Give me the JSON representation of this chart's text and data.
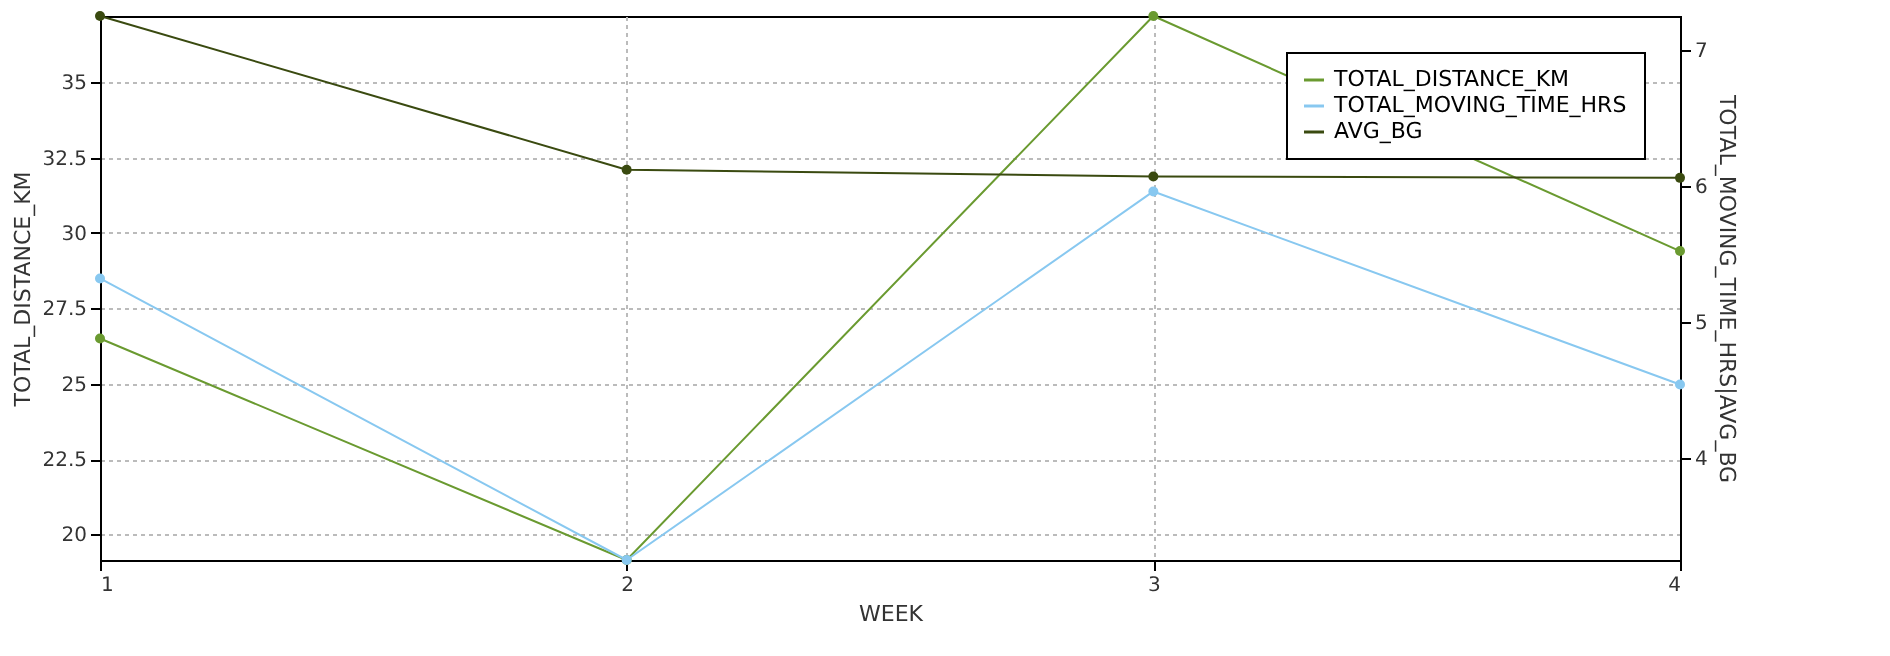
{
  "chart_data": {
    "type": "line",
    "xlabel": "WEEK",
    "ylabel": "TOTAL_DISTANCE_KM",
    "y2label": "TOTAL_MOVING_TIME_HRS|AVG_BG",
    "x": [
      1,
      2,
      3,
      4
    ],
    "xlim": [
      1,
      4
    ],
    "xticks": [
      1,
      2,
      3,
      4
    ],
    "ylim": [
      19.15,
      37.2
    ],
    "yticks": [
      20,
      22.5,
      25,
      27.5,
      30,
      32.5,
      35
    ],
    "y2lim": [
      3.25,
      7.25
    ],
    "y2ticks": [
      4,
      5,
      6,
      7
    ],
    "series": [
      {
        "name": "TOTAL_DISTANCE_KM",
        "color": "#6a9a30",
        "values": [
          26.5,
          19.15,
          37.2,
          29.4
        ]
      },
      {
        "name": "TOTAL_MOVING_TIME_HRS",
        "color": "#88c8f0",
        "values": [
          5.32,
          3.25,
          5.96,
          4.54
        ],
        "axis": "y2"
      },
      {
        "name": "AVG_BG",
        "color": "#3a4a10",
        "values": [
          7.25,
          6.12,
          6.07,
          6.06
        ],
        "axis": "y2"
      }
    ],
    "grid": true,
    "legend": "top right",
    "marker": "circle",
    "line_style": "solid"
  }
}
